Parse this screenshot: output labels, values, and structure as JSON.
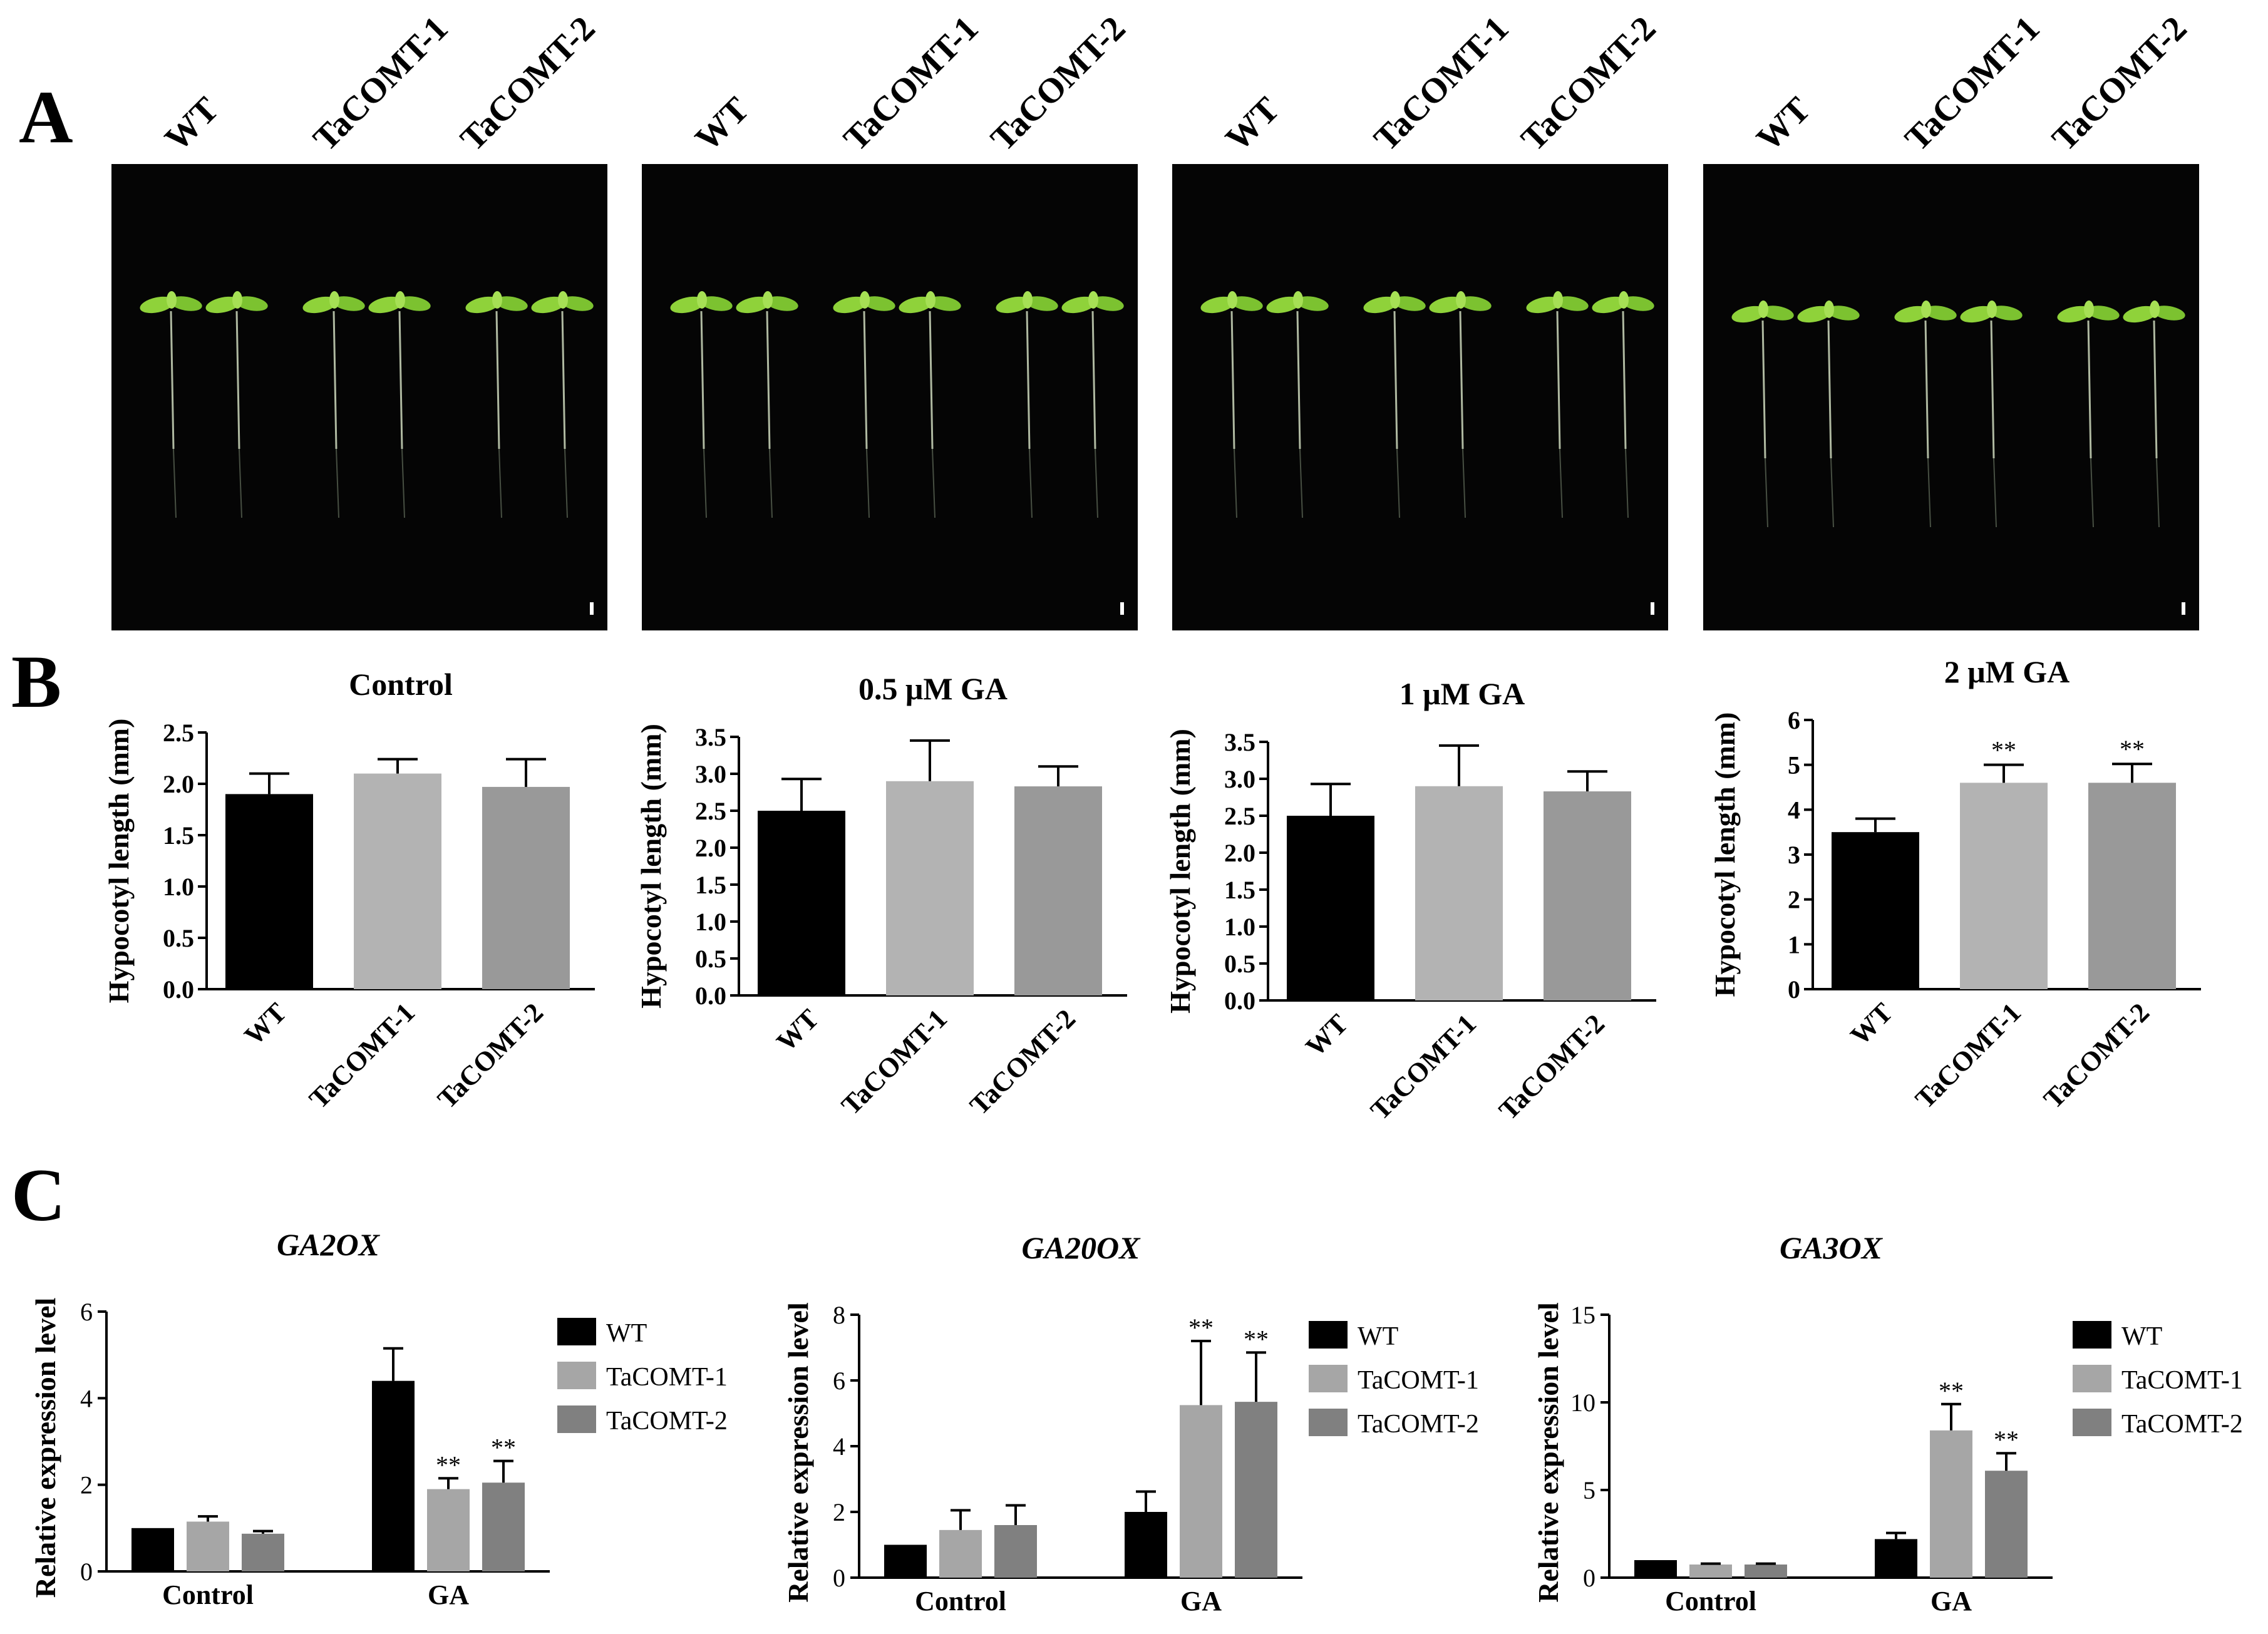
{
  "panels": {
    "A": "A",
    "B": "B",
    "C": "C"
  },
  "photo_labels": [
    [
      "WT",
      "TaCOMT-1",
      "TaCOMT-2"
    ],
    [
      "WT",
      "TaCOMT-1",
      "TaCOMT-2"
    ],
    [
      "WT",
      "TaCOMT-1",
      "TaCOMT-2"
    ],
    [
      "WT",
      "TaCOMT-1",
      "TaCOMT-2"
    ]
  ],
  "colors": {
    "wt": "#000000",
    "tacomt1": "#b3b3b3",
    "tacomt2": "#999999",
    "c_tacomt1": "#a6a6a6",
    "c_tacomt2": "#808080",
    "photo_bg": "#050505",
    "seedling": "#8fd23a"
  },
  "chart_data": [
    {
      "type": "bar",
      "title": "Control",
      "ylabel": "Hypocotyl length (mm)",
      "categories": [
        "WT",
        "TaCOMT-1",
        "TaCOMT-2"
      ],
      "values": [
        1.9,
        2.1,
        1.97
      ],
      "errors": [
        0.2,
        0.14,
        0.27
      ],
      "sig": [
        "",
        "",
        ""
      ],
      "ylim": [
        0,
        2.5
      ],
      "yticks": [
        "0.0",
        "0.5",
        "1.0",
        "1.5",
        "2.0",
        "2.5"
      ]
    },
    {
      "type": "bar",
      "title": "0.5 μM GA",
      "ylabel": "Hypocotyl length (mm)",
      "categories": [
        "WT",
        "TaCOMT-1",
        "TaCOMT-2"
      ],
      "values": [
        2.5,
        2.9,
        2.83
      ],
      "errors": [
        0.43,
        0.55,
        0.27
      ],
      "sig": [
        "",
        "",
        ""
      ],
      "ylim": [
        0,
        3.5
      ],
      "yticks": [
        "0.0",
        "0.5",
        "1.0",
        "1.5",
        "2.0",
        "2.5",
        "3.0",
        "3.5"
      ]
    },
    {
      "type": "bar",
      "title": "1 μM GA",
      "ylabel": "Hypocotyl length (mm)",
      "categories": [
        "WT",
        "TaCOMT-1",
        "TaCOMT-2"
      ],
      "values": [
        2.5,
        2.9,
        2.83
      ],
      "errors": [
        0.43,
        0.55,
        0.27
      ],
      "sig": [
        "",
        "",
        ""
      ],
      "ylim": [
        0,
        3.5
      ],
      "yticks": [
        "0.0",
        "0.5",
        "1.0",
        "1.5",
        "2.0",
        "2.5",
        "3.0",
        "3.5"
      ]
    },
    {
      "type": "bar",
      "title": "2 μM GA",
      "ylabel": "Hypocotyl length (mm)",
      "categories": [
        "WT",
        "TaCOMT-1",
        "TaCOMT-2"
      ],
      "values": [
        3.5,
        4.6,
        4.6
      ],
      "errors": [
        0.3,
        0.4,
        0.42
      ],
      "sig": [
        "",
        "**",
        "**"
      ],
      "ylim": [
        0,
        6
      ],
      "yticks": [
        "0",
        "1",
        "2",
        "3",
        "4",
        "5",
        "6"
      ]
    },
    {
      "type": "bar",
      "title": "GA2OX",
      "ylabel": "Relative expression level",
      "categories": [
        "Control",
        "GA"
      ],
      "series": [
        {
          "name": "WT",
          "values": [
            1.0,
            4.4
          ],
          "errors": [
            0,
            0.75
          ],
          "sig": [
            "",
            ""
          ]
        },
        {
          "name": "TaCOMT-1",
          "values": [
            1.15,
            1.9
          ],
          "errors": [
            0.12,
            0.25
          ],
          "sig": [
            "",
            "**"
          ]
        },
        {
          "name": "TaCOMT-2",
          "values": [
            0.87,
            2.05
          ],
          "errors": [
            0.06,
            0.5
          ],
          "sig": [
            "",
            "**"
          ]
        }
      ],
      "ylim": [
        0,
        6
      ],
      "yticks": [
        "0",
        "2",
        "4",
        "6"
      ]
    },
    {
      "type": "bar",
      "title": "GA20OX",
      "ylabel": "Relative expression level",
      "categories": [
        "Control",
        "GA"
      ],
      "series": [
        {
          "name": "WT",
          "values": [
            1.0,
            2.0
          ],
          "errors": [
            0,
            0.62
          ],
          "sig": [
            "",
            ""
          ]
        },
        {
          "name": "TaCOMT-1",
          "values": [
            1.45,
            5.25
          ],
          "errors": [
            0.6,
            1.95
          ],
          "sig": [
            "",
            "**"
          ]
        },
        {
          "name": "TaCOMT-2",
          "values": [
            1.6,
            5.35
          ],
          "errors": [
            0.6,
            1.5
          ],
          "sig": [
            "",
            "**"
          ]
        }
      ],
      "ylim": [
        0,
        8
      ],
      "yticks": [
        "0",
        "2",
        "4",
        "6",
        "8"
      ]
    },
    {
      "type": "bar",
      "title": "GA3OX",
      "ylabel": "Relative expression level",
      "categories": [
        "Control",
        "GA"
      ],
      "series": [
        {
          "name": "WT",
          "values": [
            1.0,
            2.2
          ],
          "errors": [
            0,
            0.35
          ],
          "sig": [
            "",
            ""
          ]
        },
        {
          "name": "TaCOMT-1",
          "values": [
            0.75,
            8.4
          ],
          "errors": [
            0.05,
            1.5
          ],
          "sig": [
            "",
            "**"
          ]
        },
        {
          "name": "TaCOMT-2",
          "values": [
            0.75,
            6.1
          ],
          "errors": [
            0.05,
            1.0
          ],
          "sig": [
            "",
            "**"
          ]
        }
      ],
      "ylim": [
        0,
        15
      ],
      "yticks": [
        "0",
        "5",
        "10",
        "15"
      ]
    }
  ]
}
